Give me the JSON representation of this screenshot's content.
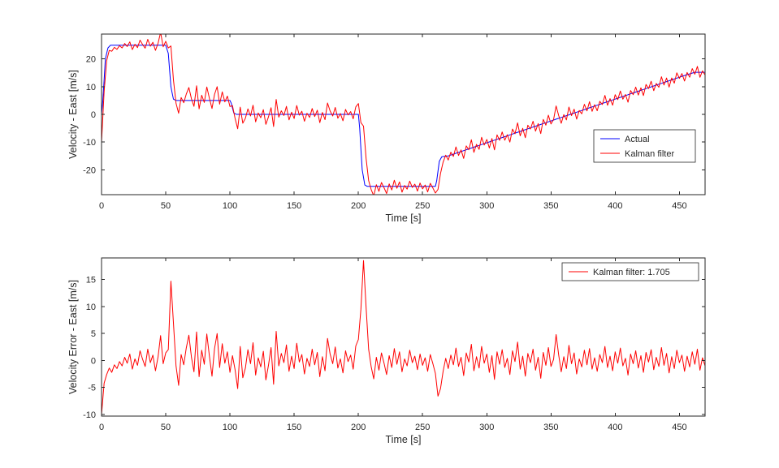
{
  "figure": {
    "background": "#ffffff",
    "axis_color": "#262626",
    "tick_label_color": "#262626"
  },
  "chart_data": [
    {
      "type": "line",
      "title": "",
      "xlabel": "Time [s]",
      "ylabel": "Velocity - East [m/s]",
      "xlim": [
        0,
        470
      ],
      "ylim": [
        -29,
        29
      ],
      "xticks": [
        0,
        50,
        100,
        150,
        200,
        250,
        300,
        350,
        400,
        450
      ],
      "yticks": [
        -20,
        -10,
        0,
        10,
        20
      ],
      "grid": false,
      "legend": {
        "position": "inside-right-middle",
        "entries": [
          {
            "label": "Actual",
            "color": "#0000ff"
          },
          {
            "label": "Kalman filter",
            "color": "#ff0000"
          }
        ]
      },
      "series": [
        {
          "name": "Actual",
          "color": "#0000ff",
          "breakpoints": [
            [
              0,
              0
            ],
            [
              1,
              5
            ],
            [
              3,
              20
            ],
            [
              5,
              24
            ],
            [
              7,
              25
            ],
            [
              50,
              25
            ],
            [
              52,
              22
            ],
            [
              54,
              10
            ],
            [
              56,
              5.5
            ],
            [
              58,
              5
            ],
            [
              100,
              5
            ],
            [
              101,
              4
            ],
            [
              103,
              0.5
            ],
            [
              105,
              0
            ],
            [
              200,
              0
            ],
            [
              201,
              -5
            ],
            [
              203,
              -20
            ],
            [
              205,
              -25.5
            ],
            [
              207,
              -26
            ],
            [
              260,
              -26
            ],
            [
              261,
              -24
            ],
            [
              263,
              -17
            ],
            [
              265,
              -15.3
            ],
            [
              270,
              -15
            ],
            [
              455,
              14.2
            ],
            [
              462,
              15.2
            ],
            [
              470,
              15.2
            ]
          ]
        },
        {
          "name": "Kalman filter",
          "color": "#ff0000",
          "derive": "actual_plus_error",
          "t0": 0,
          "dt": 2
        }
      ]
    },
    {
      "type": "line",
      "title": "",
      "xlabel": "Time [s]",
      "ylabel": "Velocity Error - East [m/s]",
      "xlim": [
        0,
        470
      ],
      "ylim": [
        -10.3,
        19
      ],
      "xticks": [
        0,
        50,
        100,
        150,
        200,
        250,
        300,
        350,
        400,
        450
      ],
      "yticks": [
        -10,
        -5,
        0,
        5,
        10,
        15
      ],
      "grid": false,
      "legend": {
        "position": "inside-top-right",
        "entries": [
          {
            "label": "Kalman filter: 1.705",
            "color": "#ff0000"
          }
        ]
      },
      "series": [
        {
          "name": "Kalman filter error",
          "color": "#ff0000",
          "t0": 0,
          "dt": 2,
          "values": [
            -10,
            -4.2,
            -2.6,
            -1.4,
            -2.2,
            -0.8,
            -1.5,
            -0.2,
            -1,
            0.6,
            -0.5,
            1.2,
            -1.6,
            0.3,
            -0.9,
            1.8,
            0.2,
            -1.1,
            2.1,
            -0.4,
            1,
            -1.9,
            0.7,
            4.6,
            -0.6,
            1.4,
            2,
            14.7,
            7,
            -1,
            -4.6,
            1.1,
            -0.8,
            2.3,
            4.7,
            0.6,
            -2.1,
            5.3,
            -3,
            1.9,
            -0.7,
            4.9,
            0.8,
            -2.9,
            2.2,
            5,
            -1.3,
            3.1,
            -0.5,
            1.6,
            -2.2,
            0.9,
            -1.7,
            -5.2,
            2.6,
            -3.2,
            -1.4,
            2,
            -0.6,
            3.3,
            -2.7,
            0.5,
            -1.2,
            1.7,
            -3.6,
            -0.9,
            2.4,
            -4.4,
            5.4,
            -1,
            1.3,
            -0.4,
            2.9,
            -2,
            0.8,
            -1.5,
            3.2,
            -0.3,
            1.1,
            -2.5,
            0.4,
            -1.1,
            2.1,
            -0.8,
            1.5,
            -3,
            0.7,
            -1.9,
            4.1,
            1.2,
            -0.6,
            2.5,
            -1.4,
            0.3,
            -2.3,
            1.8,
            -0.2,
            1,
            -1.6,
            2.7,
            3.9,
            9.5,
            18.5,
            9.8,
            2.1,
            -1.2,
            -3.4,
            0.6,
            -1.8,
            1.4,
            -0.5,
            -2.6,
            0.9,
            -1.3,
            2.2,
            -0.7,
            1.6,
            -2.1,
            0.3,
            -1,
            1.9,
            -0.4,
            0.8,
            -1.7,
            1.2,
            -0.9,
            0.5,
            -2,
            1.1,
            -0.6,
            -2.4,
            -6.6,
            -5.2,
            -2,
            0.4,
            -1.5,
            1,
            -0.8,
            2.3,
            -1.1,
            0.6,
            -2.8,
            1.4,
            -0.3,
            3,
            -1.9,
            0.7,
            -1.4,
            2.6,
            -0.5,
            1.2,
            -2.2,
            0.9,
            -3.5,
            1.6,
            -0.7,
            2,
            -1.3,
            0.4,
            -2.6,
            1.8,
            -0.2,
            3.4,
            -1.6,
            0.8,
            -2.9,
            1.3,
            -0.4,
            2.1,
            -1.8,
            0.6,
            -3.3,
            1.5,
            -0.9,
            2.4,
            -1.1,
            0.2,
            4.8,
            1,
            -2.1,
            0.7,
            -1.5,
            2.8,
            -0.6,
            1.4,
            -2.5,
            0.3,
            -1.2,
            1.9,
            -0.8,
            2.2,
            -1.6,
            0.5,
            -2,
            1.1,
            -0.4,
            2.6,
            -1.3,
            0.8,
            -1.9,
            1.6,
            -0.5,
            2.3,
            -1,
            0.4,
            -2.7,
            1.2,
            -0.6,
            1.8,
            -1.4,
            0.9,
            -2.2,
            1.5,
            -0.3,
            2,
            -1.7,
            0.6,
            -1.1,
            2.4,
            -0.9,
            1.3,
            -2.3,
            0.7,
            -1.5,
            1.9,
            -0.4,
            1,
            -2,
            0.8,
            -1.2,
            1.6,
            -0.7,
            2.1,
            -1.8,
            0.5,
            -1
          ]
        }
      ]
    }
  ]
}
